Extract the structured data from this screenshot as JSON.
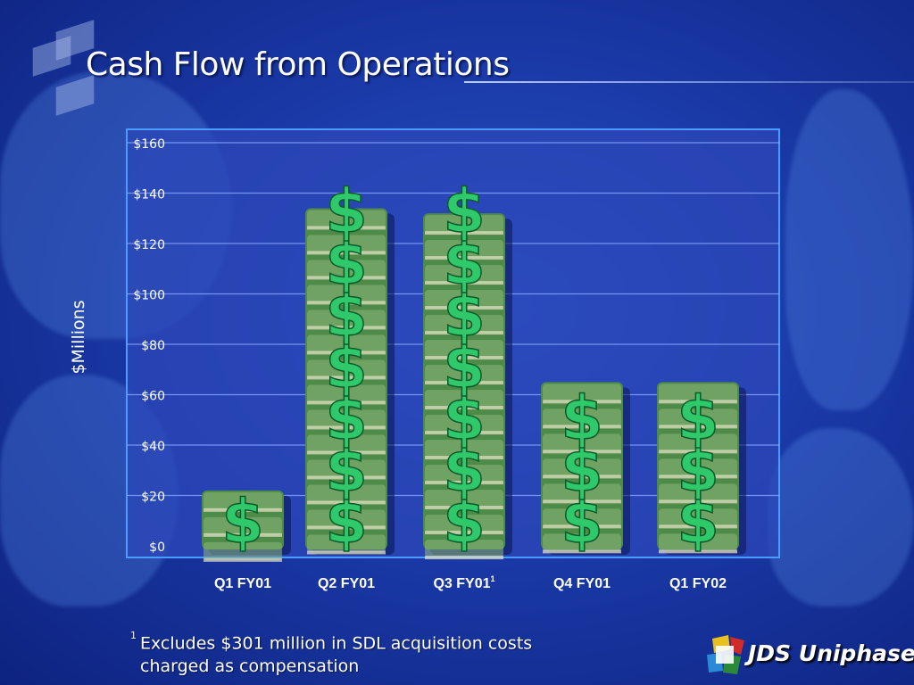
{
  "slide": {
    "title": "Cash Flow from Operations",
    "footnote_marker": "1",
    "footnote_line1": "Excludes $301 million in SDL acquisition costs",
    "footnote_line2": "charged as compensation",
    "brand_name": "JDS Uniphase"
  },
  "colors": {
    "background": "#1a3aa8",
    "plot_area": "#2c47b8",
    "gridline": "#8aa8ff",
    "dollar_sign": "#2fc86a",
    "money_stack": "#4e8a48"
  },
  "chart_data": {
    "type": "bar",
    "title": "Cash Flow from Operations",
    "ylabel": "$Millions",
    "xlabel": "",
    "ylim": [
      0,
      160
    ],
    "y_ticks": [
      "$0",
      "$20",
      "$40",
      "$60",
      "$80",
      "$100",
      "$120",
      "$140",
      "$160"
    ],
    "grid": true,
    "categories": [
      "Q1 FY01",
      "Q2 FY01",
      "Q3 FY01",
      "Q4 FY01",
      "Q1 FY02"
    ],
    "category_superscripts": [
      "",
      "",
      "1",
      "",
      ""
    ],
    "values": [
      22,
      134,
      132,
      65,
      65
    ],
    "bar_style": "stacked dollar bills with green dollar signs"
  }
}
